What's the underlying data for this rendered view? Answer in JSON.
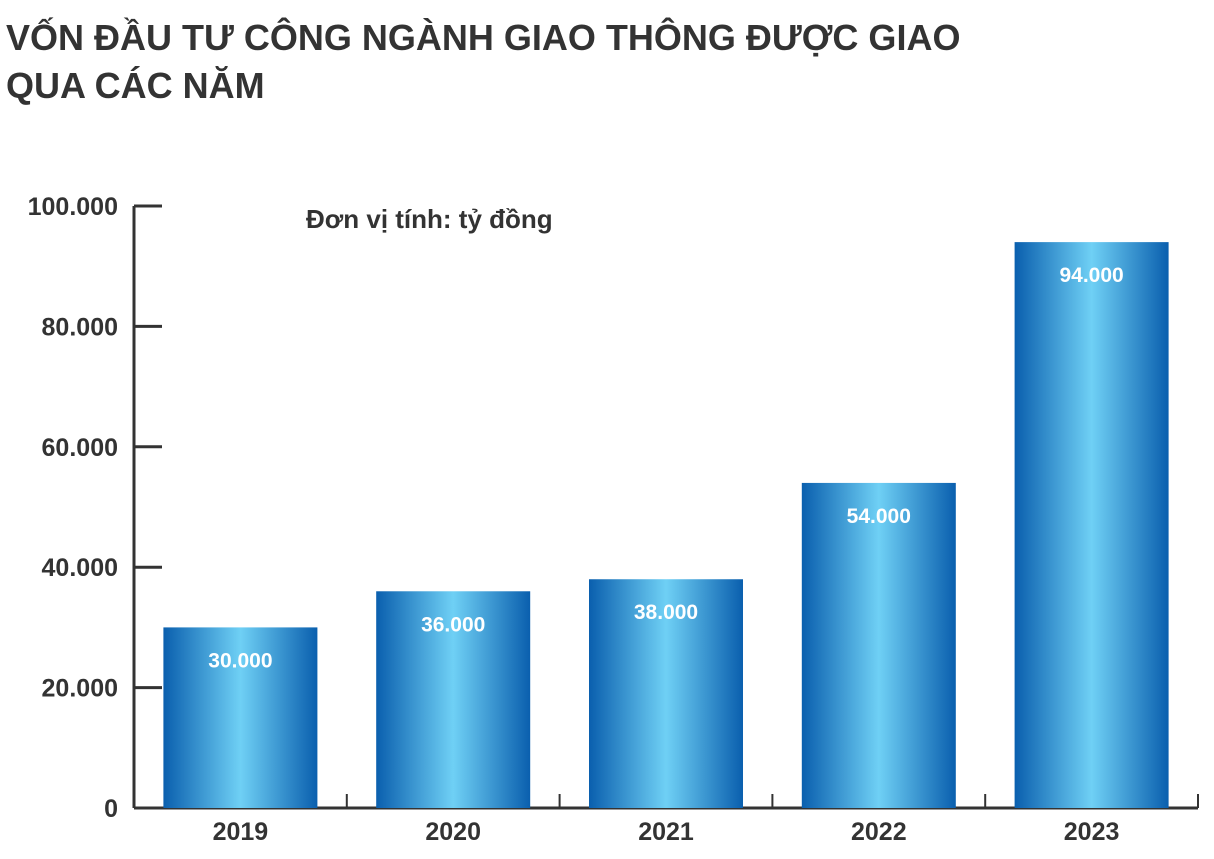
{
  "chart_data": {
    "type": "bar",
    "title_lines": [
      "VỐN ĐẦU TƯ CÔNG NGÀNH GIAO THÔNG ĐƯỢC GIAO",
      "QUA CÁC NĂM"
    ],
    "unit_note": "Đơn vị tính: tỷ đồng",
    "categories": [
      "2019",
      "2020",
      "2021",
      "2022",
      "2023"
    ],
    "values": [
      30000,
      36000,
      38000,
      54000,
      94000
    ],
    "value_labels": [
      "30.000",
      "36.000",
      "38.000",
      "54.000",
      "94.000"
    ],
    "ylim": [
      0,
      100000
    ],
    "yticks": [
      0,
      20000,
      40000,
      60000,
      80000,
      100000
    ],
    "ytick_labels": [
      "0",
      "20.000",
      "40.000",
      "60.000",
      "80.000",
      "100.000"
    ],
    "grid": false,
    "colors": {
      "bar_edge": "#0a5fae",
      "bar_center": "#6fd0f5",
      "axis": "#333333",
      "text": "#333333"
    }
  }
}
